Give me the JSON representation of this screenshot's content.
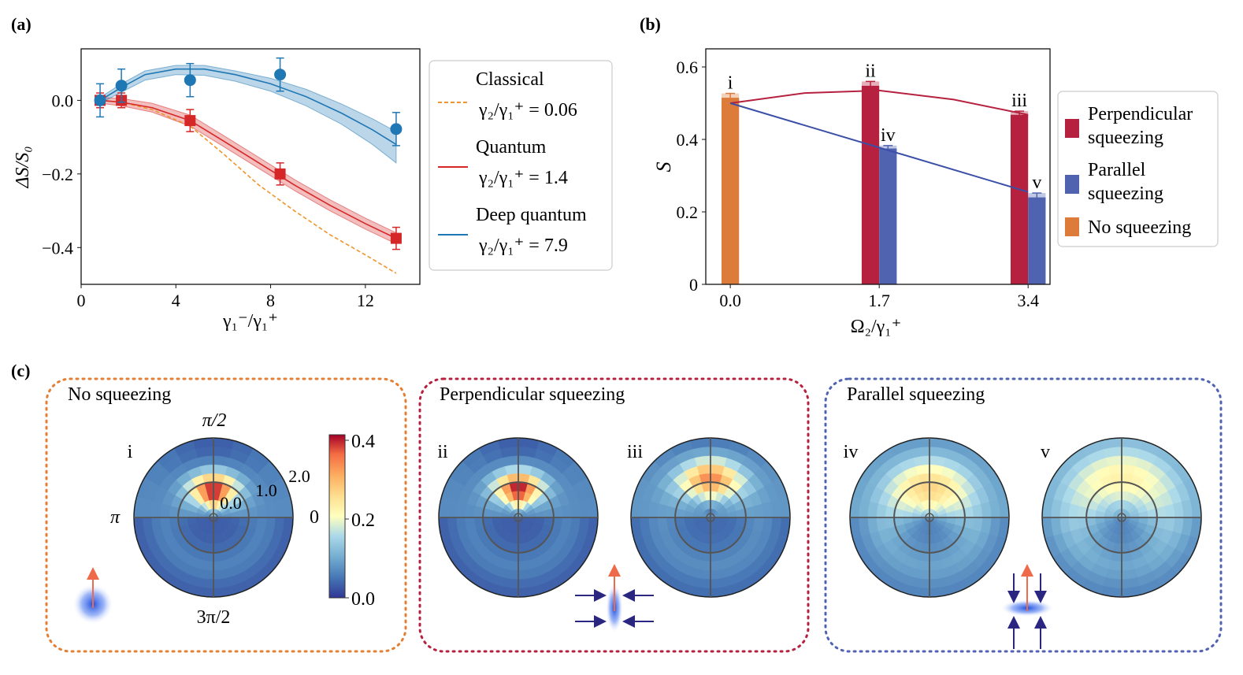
{
  "panel_labels": {
    "a": "(a)",
    "b": "(b)",
    "c": "(c)"
  },
  "chart_data": [
    {
      "id": "a",
      "type": "line",
      "title": "",
      "xlabel": "γ₁⁻/γ₁⁺",
      "ylabel": "ΔS/S₀",
      "xlim": [
        0,
        14.3
      ],
      "ylim": [
        -0.5,
        0.14
      ],
      "xticks": [
        0,
        4,
        8,
        12
      ],
      "xtick_labels": [
        "0",
        "4",
        "8",
        "12"
      ],
      "yticks": [
        0.0,
        -0.2,
        -0.4
      ],
      "ytick_labels": [
        "0.0",
        "−0.2",
        "−0.4"
      ],
      "grid": false,
      "legend_placement": "outside-right",
      "series": [
        {
          "name": "Classical",
          "legend_label": "Classical",
          "legend_ratio": "γ₂/γ₁⁺ = 0.06",
          "color": "#f0952b",
          "style": "dashed",
          "x": [
            0.8,
            1.7,
            3.0,
            4.6,
            6.0,
            7.5,
            9.0,
            10.5,
            12.0,
            13.3
          ],
          "y": [
            0.0,
            -0.005,
            -0.025,
            -0.07,
            -0.145,
            -0.23,
            -0.3,
            -0.365,
            -0.42,
            -0.47
          ]
        },
        {
          "name": "Quantum",
          "legend_label": "Quantum",
          "legend_ratio": "γ₂/γ₁⁺ = 1.4",
          "color": "#d62728",
          "style": "solid",
          "x": [
            0.8,
            1.7,
            3.0,
            4.6,
            6.0,
            7.5,
            9.0,
            10.5,
            12.0,
            13.3
          ],
          "y": [
            0.0,
            -0.005,
            -0.02,
            -0.055,
            -0.11,
            -0.17,
            -0.23,
            -0.285,
            -0.335,
            -0.375
          ],
          "band_low": [
            -0.008,
            -0.015,
            -0.032,
            -0.07,
            -0.125,
            -0.185,
            -0.245,
            -0.3,
            -0.35,
            -0.39
          ],
          "band_high": [
            0.008,
            0.005,
            -0.008,
            -0.04,
            -0.095,
            -0.155,
            -0.215,
            -0.27,
            -0.32,
            -0.36
          ],
          "points_x": [
            0.8,
            1.7,
            4.6,
            8.4,
            13.3
          ],
          "points_y": [
            0.0,
            0.0,
            -0.055,
            -0.2,
            -0.375
          ],
          "points_err": [
            0.02,
            0.02,
            0.03,
            0.03,
            0.03
          ],
          "marker": "square"
        },
        {
          "name": "Deep quantum",
          "legend_label": "Deep quantum",
          "legend_ratio": "γ₂/γ₁⁺ = 7.9",
          "color": "#1f77b4",
          "style": "solid",
          "x": [
            0.8,
            1.7,
            2.7,
            4.0,
            5.2,
            6.5,
            8.0,
            9.5,
            11.0,
            12.3,
            13.3
          ],
          "y": [
            0.0,
            0.035,
            0.07,
            0.085,
            0.085,
            0.07,
            0.045,
            0.01,
            -0.035,
            -0.08,
            -0.12
          ],
          "band_low": [
            -0.008,
            0.022,
            0.055,
            0.07,
            0.068,
            0.052,
            0.025,
            -0.015,
            -0.065,
            -0.12,
            -0.17
          ],
          "band_high": [
            0.008,
            0.045,
            0.08,
            0.095,
            0.095,
            0.08,
            0.06,
            0.03,
            -0.01,
            -0.05,
            -0.085
          ],
          "points_x": [
            0.8,
            1.7,
            4.6,
            8.4,
            13.3
          ],
          "points_y": [
            0.0,
            0.04,
            0.055,
            0.07,
            -0.078
          ],
          "points_err": [
            0.045,
            0.045,
            0.045,
            0.045,
            0.045
          ],
          "marker": "circle"
        }
      ]
    },
    {
      "id": "b",
      "type": "bar",
      "title": "",
      "xlabel": "Ω₂/γ₁⁺",
      "ylabel": "S",
      "xlim": [
        -0.28,
        3.65
      ],
      "ylim": [
        0,
        0.65
      ],
      "xticks": [
        0.0,
        1.7,
        3.4
      ],
      "xtick_labels": [
        "0.0",
        "1.7",
        "3.4"
      ],
      "yticks": [
        0,
        0.2,
        0.4,
        0.6
      ],
      "ytick_labels": [
        "0",
        "0.2",
        "0.4",
        "0.6"
      ],
      "grid": false,
      "legend_placement": "outside-right",
      "legend": [
        {
          "label_lines": [
            "Perpendicular",
            "squeezing"
          ],
          "color": "#b5213e"
        },
        {
          "label_lines": [
            "Parallel",
            "squeezing"
          ],
          "color": "#4f63b1"
        },
        {
          "label_lines": [
            "No squeezing"
          ],
          "color": "#dd7b3b"
        }
      ],
      "bars": [
        {
          "x": 0.0,
          "offset": 0.0,
          "value": 0.515,
          "err": 0.012,
          "series": "No squeezing",
          "color": "#dd7b3b",
          "annotation": "i"
        },
        {
          "x": 1.7,
          "offset": -0.1,
          "value": 0.548,
          "err": 0.012,
          "series": "Perpendicular squeezing",
          "color": "#b5213e",
          "annotation": "ii"
        },
        {
          "x": 1.7,
          "offset": 0.1,
          "value": 0.375,
          "err": 0.008,
          "series": "Parallel squeezing",
          "color": "#4f63b1",
          "annotation": "iv"
        },
        {
          "x": 3.4,
          "offset": -0.1,
          "value": 0.468,
          "err": 0.01,
          "series": "Perpendicular squeezing",
          "color": "#b5213e",
          "annotation": "iii"
        },
        {
          "x": 3.4,
          "offset": 0.1,
          "value": 0.24,
          "err": 0.012,
          "series": "Parallel squeezing",
          "color": "#4f63b1",
          "annotation": "v"
        }
      ],
      "lines": [
        {
          "name": "Perpendicular trend",
          "color": "#b5213e",
          "x": [
            0.0,
            0.85,
            1.7,
            2.55,
            3.4
          ],
          "y": [
            0.5,
            0.528,
            0.535,
            0.51,
            0.468
          ]
        },
        {
          "name": "Parallel trend",
          "color": "#3b4fa6",
          "x": [
            0.0,
            3.4
          ],
          "y": [
            0.5,
            0.255
          ]
        }
      ]
    },
    {
      "id": "c",
      "type": "heatmap",
      "projection": "polar",
      "colorbar": {
        "min": 0.0,
        "max": 0.4,
        "ticks": [
          "0.0",
          "0.2",
          "0.4"
        ]
      },
      "angle_labels": {
        "top": "π/2",
        "left": "π",
        "right": "0",
        "bottom": "3π/2"
      },
      "radial_labels": [
        "0.0",
        "1.0",
        "2.0"
      ],
      "boxes": [
        {
          "title": "No squeezing",
          "color": "#e07f35",
          "plots": [
            "i"
          ]
        },
        {
          "title": "Perpendicular squeezing",
          "color": "#b5213e",
          "plots": [
            "ii",
            "iii"
          ]
        },
        {
          "title": "Parallel squeezing",
          "color": "#4f63b1",
          "plots": [
            "iv",
            "v"
          ]
        }
      ],
      "plots": [
        {
          "label": "i",
          "peak_angle_deg": 90,
          "angular_width_deg": 45,
          "peak_radius": 0.75,
          "radial_width": 0.55,
          "peak_value": 0.4,
          "base": 0.03
        },
        {
          "label": "ii",
          "peak_angle_deg": 90,
          "angular_width_deg": 42,
          "peak_radius": 0.8,
          "radial_width": 0.55,
          "peak_value": 0.4,
          "base": 0.03
        },
        {
          "label": "iii",
          "peak_angle_deg": 90,
          "angular_width_deg": 45,
          "peak_radius": 1.1,
          "radial_width": 0.6,
          "peak_value": 0.33,
          "base": 0.04
        },
        {
          "label": "iv",
          "peak_angle_deg": 90,
          "angular_width_deg": 80,
          "peak_radius": 0.85,
          "radial_width": 0.9,
          "peak_value": 0.26,
          "base": 0.06
        },
        {
          "label": "v",
          "peak_angle_deg": 90,
          "angular_width_deg": 95,
          "peak_radius": 1.15,
          "radial_width": 1.0,
          "peak_value": 0.22,
          "base": 0.06
        }
      ]
    }
  ]
}
